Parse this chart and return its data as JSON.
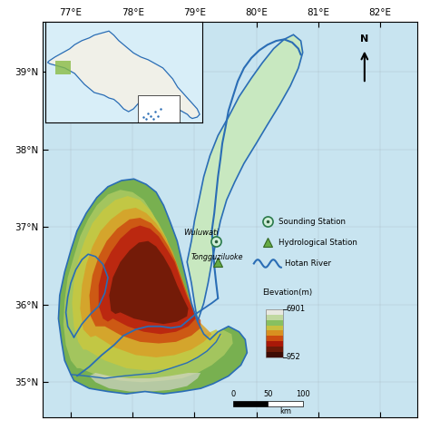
{
  "lon_ticks": [
    77,
    78,
    79,
    80,
    81,
    82
  ],
  "lat_ticks": [
    35,
    36,
    37,
    38,
    39
  ],
  "lon_labels": [
    "77°E",
    "78°E",
    "79°E",
    "80°E",
    "81°E",
    "82°E"
  ],
  "lat_labels": [
    "35°N",
    "36°N",
    "37°N",
    "38°N",
    "39°N"
  ],
  "river_color": "#2a6db5",
  "bg_color": "#c8e4f0"
}
